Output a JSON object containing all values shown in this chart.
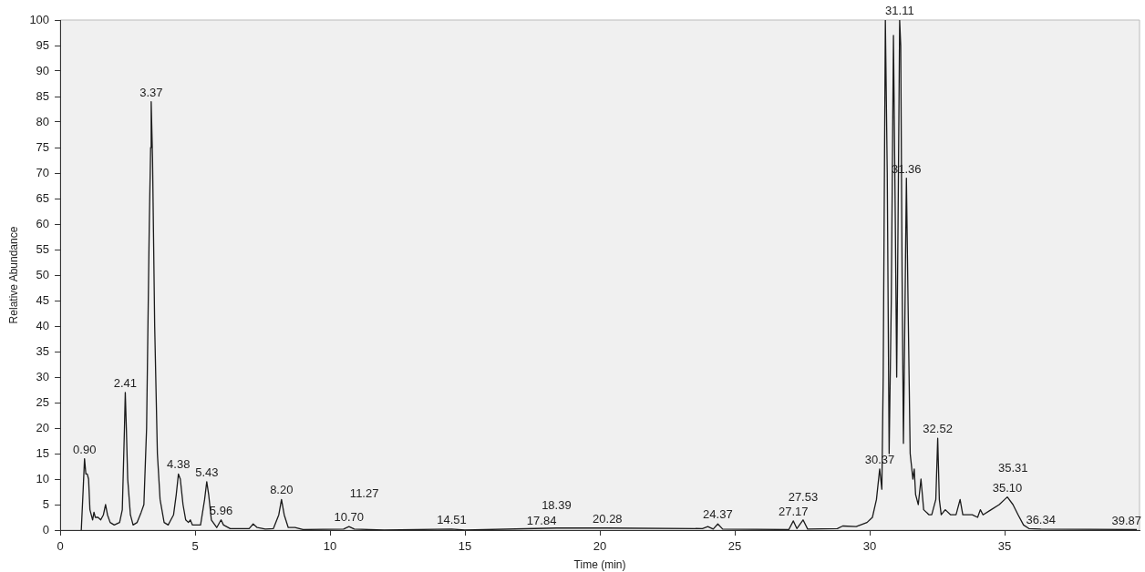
{
  "chart_data": {
    "type": "line",
    "xlabel": "Time (min)",
    "ylabel": "Relative Abundance",
    "xlim": [
      0,
      40
    ],
    "xticks": [
      0,
      5,
      10,
      15,
      20,
      25,
      30,
      35
    ],
    "ylim": [
      0,
      100
    ],
    "yticks": [
      0,
      5,
      10,
      15,
      20,
      25,
      30,
      35,
      40,
      45,
      50,
      55,
      60,
      65,
      70,
      75,
      80,
      85,
      90,
      95,
      100
    ],
    "grid": false,
    "legend": false,
    "marker": "none",
    "line_style": "solid",
    "series": [
      {
        "color": "#1a1a1a",
        "x": [
          0.78,
          0.85,
          0.9,
          0.95,
          1.0,
          1.05,
          1.1,
          1.2,
          1.25,
          1.3,
          1.4,
          1.5,
          1.6,
          1.68,
          1.75,
          1.85,
          2.0,
          2.2,
          2.3,
          2.38,
          2.41,
          2.45,
          2.5,
          2.6,
          2.7,
          2.85,
          3.0,
          3.1,
          3.2,
          3.3,
          3.35,
          3.37,
          3.42,
          3.5,
          3.6,
          3.7,
          3.85,
          4.0,
          4.1,
          4.2,
          4.3,
          4.38,
          4.45,
          4.55,
          4.65,
          4.75,
          4.82,
          4.9,
          5.2,
          5.35,
          5.43,
          5.5,
          5.6,
          5.8,
          5.96,
          6.05,
          6.3,
          7.0,
          7.15,
          7.3,
          7.6,
          7.9,
          8.1,
          8.2,
          8.3,
          8.45,
          8.7,
          9.0,
          10.5,
          10.7,
          10.9,
          12,
          14.5,
          15,
          18.39,
          20.28,
          23.8,
          24,
          24.2,
          24.37,
          24.55,
          27.0,
          27.17,
          27.3,
          27.53,
          27.7,
          28.8,
          29.0,
          29.5,
          29.9,
          30.1,
          30.25,
          30.37,
          30.45,
          30.5,
          30.58,
          30.65,
          30.72,
          30.8,
          30.88,
          30.95,
          31.0,
          31.05,
          31.11,
          31.15,
          31.2,
          31.25,
          31.3,
          31.36,
          31.42,
          31.5,
          31.6,
          31.65,
          31.7,
          31.8,
          31.9,
          31.95,
          32.0,
          32.2,
          32.3,
          32.45,
          32.52,
          32.58,
          32.65,
          32.8,
          33.0,
          33.2,
          33.35,
          33.45,
          33.8,
          34.0,
          34.1,
          34.2,
          34.5,
          34.8,
          35.0,
          35.1,
          35.31,
          35.5,
          35.7,
          35.9,
          36.34,
          39.9
        ],
        "values": [
          0,
          8,
          14,
          11,
          11,
          10,
          4,
          2,
          3.5,
          2.5,
          2.5,
          2,
          3,
          5,
          3,
          1.5,
          1,
          1.5,
          4,
          20,
          27,
          20,
          10,
          3,
          1,
          1.5,
          3.5,
          5,
          20,
          60,
          75,
          84,
          73,
          40,
          15,
          6,
          1.5,
          1,
          2,
          3,
          7,
          11,
          10,
          5,
          2,
          1.5,
          2,
          1,
          1,
          6,
          9.5,
          7,
          2,
          0.5,
          2,
          1,
          0.3,
          0.3,
          1.2,
          0.5,
          0.2,
          0.3,
          3,
          6,
          3,
          0.5,
          0.5,
          0.1,
          0.2,
          0.7,
          0.2,
          0,
          0.2,
          0,
          0.4,
          0.4,
          0.3,
          0.7,
          0.2,
          1.2,
          0.2,
          0.1,
          1.8,
          0.3,
          2,
          0.2,
          0.3,
          0.8,
          0.7,
          1.5,
          2.5,
          6,
          12,
          8,
          30,
          100,
          70,
          15,
          45,
          97,
          60,
          30,
          60,
          100,
          95,
          50,
          17,
          40,
          69,
          45,
          15,
          10,
          12,
          7,
          5,
          10,
          7,
          4,
          3,
          3,
          6,
          18,
          6,
          3,
          4,
          3,
          3,
          6,
          3,
          3,
          2.5,
          4,
          3,
          4,
          5,
          6,
          6.5,
          5,
          3,
          1,
          0.3,
          0.2,
          0.1
        ]
      }
    ],
    "annotations": [
      {
        "text": "0.90",
        "x": 0.9,
        "y": 14
      },
      {
        "text": "2.41",
        "x": 2.41,
        "y": 27
      },
      {
        "text": "3.37",
        "x": 3.37,
        "y": 84
      },
      {
        "text": "4.38",
        "x": 4.38,
        "y": 11
      },
      {
        "text": "5.43",
        "x": 5.43,
        "y": 9.5
      },
      {
        "text": "5.96",
        "x": 5.96,
        "y": 2
      },
      {
        "text": "8.20",
        "x": 8.2,
        "y": 6
      },
      {
        "text": "10.70",
        "x": 10.7,
        "y": 0.7
      },
      {
        "text": "11.27",
        "x": 11.27,
        "y": 0
      },
      {
        "text": "14.51",
        "x": 14.51,
        "y": 0.2
      },
      {
        "text": "17.84",
        "x": 17.84,
        "y": 0
      },
      {
        "text": "18.39",
        "x": 18.39,
        "y": 0.4
      },
      {
        "text": "20.28",
        "x": 20.28,
        "y": 0.4
      },
      {
        "text": "24.37",
        "x": 24.37,
        "y": 1.2
      },
      {
        "text": "27.17",
        "x": 27.17,
        "y": 1.8
      },
      {
        "text": "27.53",
        "x": 27.53,
        "y": 2
      },
      {
        "text": "30.37",
        "x": 30.37,
        "y": 12
      },
      {
        "text": "31.11",
        "x": 31.11,
        "y": 100
      },
      {
        "text": "31.36",
        "x": 31.36,
        "y": 69
      },
      {
        "text": "32.52",
        "x": 32.52,
        "y": 18
      },
      {
        "text": "35.10",
        "x": 35.1,
        "y": 6.5
      },
      {
        "text": "35.31",
        "x": 35.31,
        "y": 5
      },
      {
        "text": "36.34",
        "x": 36.34,
        "y": 0.2
      },
      {
        "text": "39.87",
        "x": 39.87,
        "y": 0
      }
    ]
  }
}
